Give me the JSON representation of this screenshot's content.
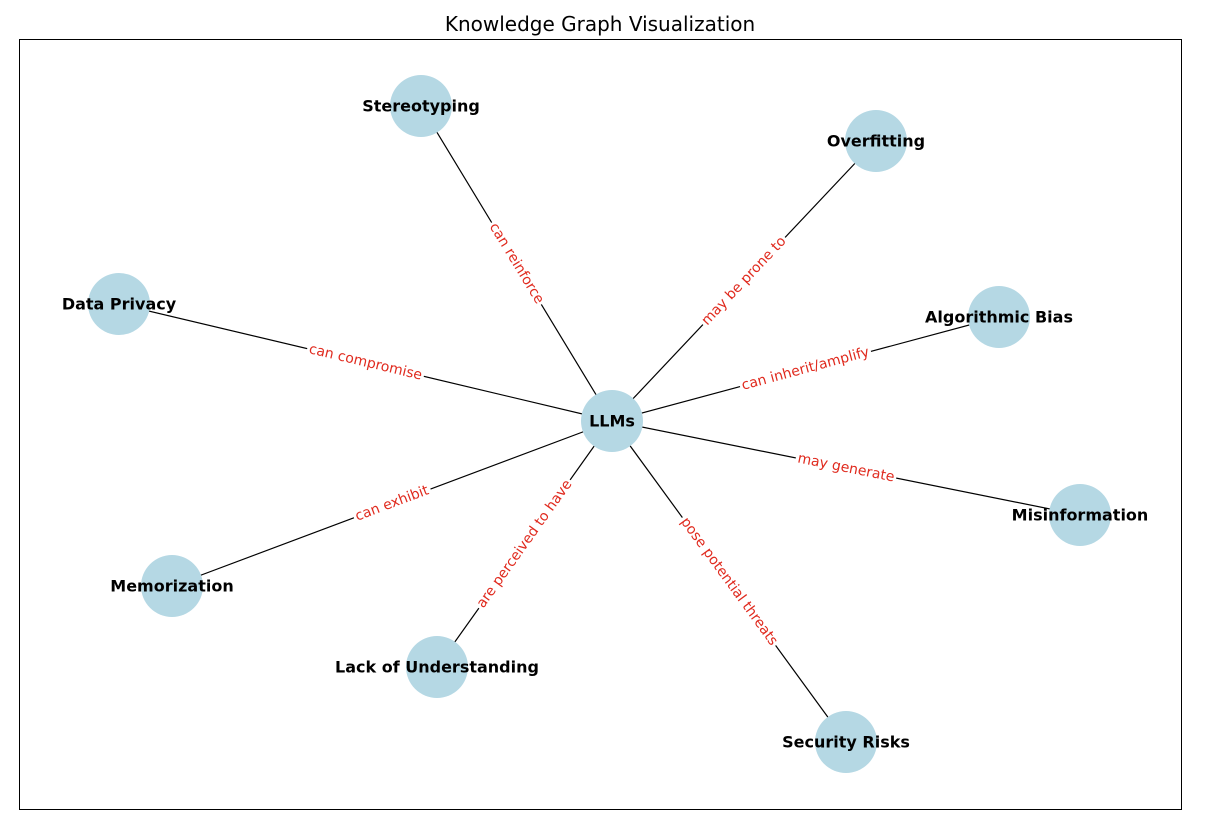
{
  "title": "Knowledge Graph Visualization",
  "colors": {
    "node_fill": "#b5d8e4",
    "edge_stroke": "#000000",
    "edge_label": "#e02a1e",
    "frame": "#000000"
  },
  "center_node": "LLMs",
  "nodes": [
    {
      "id": "llms",
      "label": "LLMs"
    },
    {
      "id": "stereotyping",
      "label": "Stereotyping"
    },
    {
      "id": "overfitting",
      "label": "Overfitting"
    },
    {
      "id": "data-privacy",
      "label": "Data Privacy"
    },
    {
      "id": "algorithmic-bias",
      "label": "Algorithmic Bias"
    },
    {
      "id": "misinformation",
      "label": "Misinformation"
    },
    {
      "id": "memorization",
      "label": "Memorization"
    },
    {
      "id": "lack-of-understanding",
      "label": "Lack of Understanding"
    },
    {
      "id": "security-risks",
      "label": "Security Risks"
    }
  ],
  "edges": [
    {
      "source": "llms",
      "target": "stereotyping",
      "label": "can reinforce"
    },
    {
      "source": "llms",
      "target": "overfitting",
      "label": "may be prone to"
    },
    {
      "source": "llms",
      "target": "data-privacy",
      "label": "can compromise"
    },
    {
      "source": "llms",
      "target": "algorithmic-bias",
      "label": "can inherit/amplify"
    },
    {
      "source": "llms",
      "target": "misinformation",
      "label": "may generate"
    },
    {
      "source": "llms",
      "target": "memorization",
      "label": "can exhibit"
    },
    {
      "source": "llms",
      "target": "lack-of-understanding",
      "label": "are perceived to have"
    },
    {
      "source": "llms",
      "target": "security-risks",
      "label": "pose potential threats"
    }
  ]
}
